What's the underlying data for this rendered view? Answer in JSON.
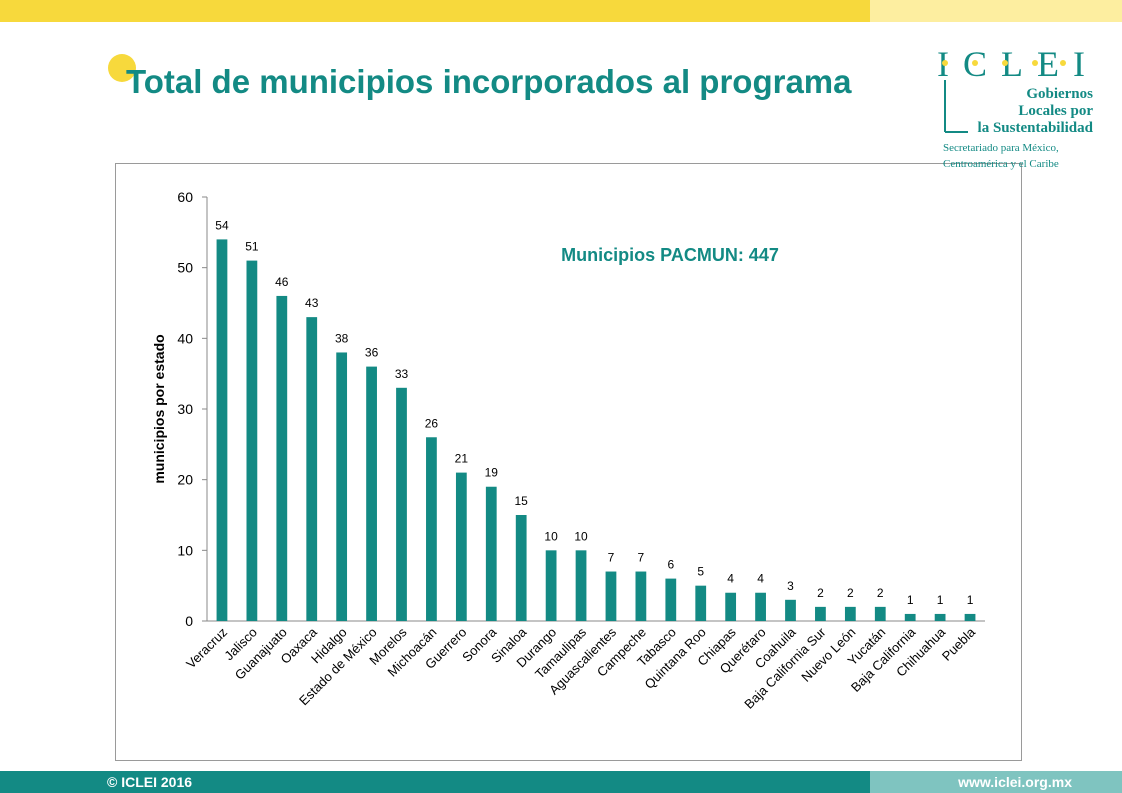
{
  "slide": {
    "title": "Total de municipios incorporados al programa",
    "logo": {
      "name": "ICLEI",
      "line1": "Gobiernos",
      "line2": "Locales por",
      "line3": "la Sustentabilidad",
      "line4": "Secretariado para México,",
      "line5": "Centroamérica y el Caribe"
    },
    "footer": {
      "copyright": "© ICLEI 2016",
      "url": "www.iclei.org.mx"
    }
  },
  "chart_data": {
    "type": "bar",
    "annotation": "Municipios PACMUN: 447",
    "y_label": "municipios  por estado",
    "categories": [
      "Veracruz",
      "Jalisco",
      "Guanajuato",
      "Oaxaca",
      "Hidalgo",
      "Estado de México",
      "Morelos",
      "Michoacán",
      "Guerrero",
      "Sonora",
      "Sinaloa",
      "Durango",
      "Tamaulipas",
      "Aguascalientes",
      "Campeche",
      "Tabasco",
      "Quintana Roo",
      "Chiapas",
      "Querétaro",
      "Coahuila",
      "Baja California Sur",
      "Nuevo León",
      "Yucatán",
      "Baja California",
      "Chihuahua",
      "Puebla"
    ],
    "values": [
      54,
      51,
      46,
      43,
      38,
      36,
      33,
      26,
      21,
      19,
      15,
      10,
      10,
      7,
      7,
      6,
      5,
      4,
      4,
      3,
      2,
      2,
      2,
      1,
      1,
      1
    ],
    "color": "#138a84",
    "ylim": [
      0,
      60
    ],
    "yticks": [
      0,
      10,
      20,
      30,
      40,
      50,
      60
    ],
    "grid": false
  }
}
